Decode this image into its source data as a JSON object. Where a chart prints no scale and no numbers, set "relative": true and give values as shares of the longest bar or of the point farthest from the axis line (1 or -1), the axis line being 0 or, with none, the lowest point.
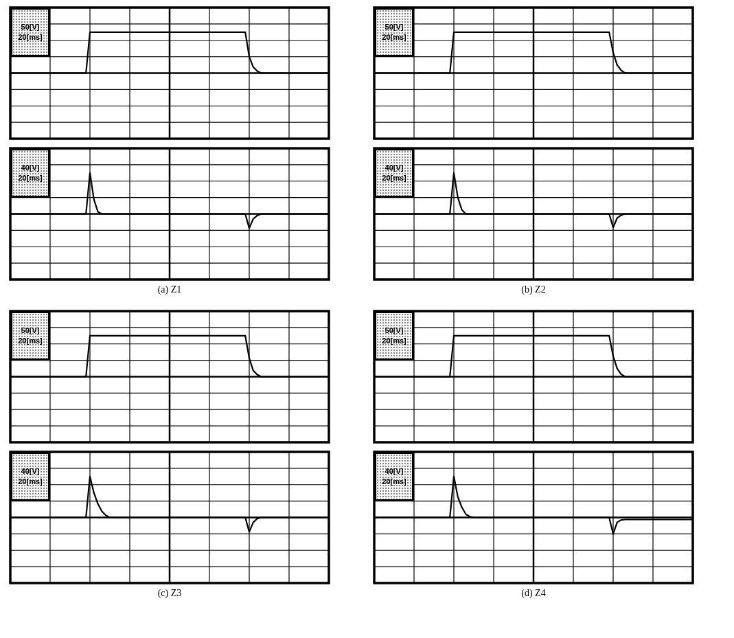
{
  "chart_data": [
    {
      "type": "line",
      "relative": true,
      "grid": true,
      "annotations": [
        "50[V]",
        "20[ms]"
      ],
      "categories": [
        null,
        null,
        null,
        null,
        null,
        null,
        null,
        null,
        null,
        null,
        null,
        null,
        null,
        null,
        null,
        null,
        null,
        null,
        null,
        null,
        null,
        null,
        null,
        null,
        null,
        null,
        null,
        null,
        null,
        null,
        null,
        null,
        null,
        null,
        null,
        null,
        null,
        null,
        null,
        null,
        null,
        null,
        null,
        null,
        null,
        null,
        null,
        null,
        null,
        null,
        null,
        null,
        null,
        null,
        null,
        null,
        null,
        null,
        null,
        null,
        null,
        null,
        null,
        null,
        null,
        null,
        null,
        null,
        null,
        null,
        null,
        null,
        null,
        null,
        null,
        null,
        null,
        null,
        null,
        null,
        null
      ],
      "series": [
        {
          "color": "#000000",
          "values": [
            0,
            0,
            0,
            0,
            0,
            0,
            0,
            0,
            0,
            0,
            0,
            0,
            0,
            0,
            0,
            0,
            0,
            0,
            0,
            0,
            1,
            1,
            1,
            1,
            1,
            1,
            1,
            1,
            1,
            1,
            1,
            1,
            1,
            1,
            1,
            1,
            1,
            1,
            1,
            1,
            1,
            1,
            1,
            1,
            1,
            1,
            1,
            1,
            1,
            1,
            1,
            1,
            1,
            1,
            1,
            1,
            1,
            1,
            1,
            1,
            0.4,
            0.15,
            0.05,
            0,
            0,
            0,
            0,
            0,
            0,
            0,
            0,
            0,
            0,
            0,
            0,
            0,
            0,
            0,
            0,
            0,
            0
          ]
        }
      ]
    },
    {
      "type": "line",
      "relative": true,
      "grid": true,
      "annotations": [
        "40[V]",
        "20[ms]",
        "(a) Z1"
      ],
      "categories": [
        null,
        null,
        null,
        null,
        null,
        null,
        null,
        null,
        null,
        null,
        null,
        null,
        null,
        null,
        null,
        null,
        null,
        null,
        null,
        null,
        null,
        null,
        null,
        null,
        null,
        null,
        null,
        null,
        null,
        null,
        null,
        null,
        null,
        null,
        null,
        null,
        null,
        null,
        null,
        null,
        null,
        null,
        null,
        null,
        null,
        null,
        null,
        null,
        null,
        null,
        null,
        null,
        null,
        null,
        null,
        null,
        null,
        null,
        null,
        null,
        null,
        null,
        null,
        null,
        null,
        null,
        null,
        null,
        null,
        null,
        null,
        null,
        null,
        null,
        null,
        null,
        null,
        null,
        null,
        null,
        null
      ],
      "series": [
        {
          "color": "#000000",
          "values": [
            0,
            0,
            0,
            0,
            0,
            0,
            0,
            0,
            0,
            0,
            0,
            0,
            0,
            0,
            0,
            0,
            0,
            0,
            0,
            0,
            1,
            0.35,
            0.05,
            0,
            0,
            0,
            0,
            0,
            0,
            0,
            0,
            0,
            0,
            0,
            0,
            0,
            0,
            0,
            0,
            0,
            0,
            0,
            0,
            0,
            0,
            0,
            0,
            0,
            0,
            0,
            0,
            0,
            0,
            0,
            0,
            0,
            0,
            0,
            0,
            0,
            -0.35,
            -0.12,
            -0.04,
            0,
            0,
            0,
            0,
            0,
            0,
            0,
            0,
            0,
            0,
            0,
            0,
            0,
            0,
            0,
            0,
            0,
            0
          ]
        }
      ]
    },
    {
      "type": "line",
      "relative": true,
      "grid": true,
      "annotations": [
        "50[V]",
        "20[ms]"
      ],
      "categories": [
        null,
        null,
        null,
        null,
        null,
        null,
        null,
        null,
        null,
        null,
        null,
        null,
        null,
        null,
        null,
        null,
        null,
        null,
        null,
        null,
        null,
        null,
        null,
        null,
        null,
        null,
        null,
        null,
        null,
        null,
        null,
        null,
        null,
        null,
        null,
        null,
        null,
        null,
        null,
        null,
        null,
        null,
        null,
        null,
        null,
        null,
        null,
        null,
        null,
        null,
        null,
        null,
        null,
        null,
        null,
        null,
        null,
        null,
        null,
        null,
        null,
        null,
        null,
        null,
        null,
        null,
        null,
        null,
        null,
        null,
        null,
        null,
        null,
        null,
        null,
        null,
        null,
        null,
        null,
        null,
        null
      ],
      "series": [
        {
          "color": "#000000",
          "values": [
            0,
            0,
            0,
            0,
            0,
            0,
            0,
            0,
            0,
            0,
            0,
            0,
            0,
            0,
            0,
            0,
            0,
            0,
            0,
            0,
            1,
            1,
            1,
            1,
            1,
            1,
            1,
            1,
            1,
            1,
            1,
            1,
            1,
            1,
            1,
            1,
            1,
            1,
            1,
            1,
            1,
            1,
            1,
            1,
            1,
            1,
            1,
            1,
            1,
            1,
            1,
            1,
            1,
            1,
            1,
            1,
            1,
            1,
            1,
            1,
            0.5,
            0.2,
            0.07,
            0,
            0,
            0,
            0,
            0,
            0,
            0,
            0,
            0,
            0,
            0,
            0,
            0,
            0,
            0,
            0,
            0,
            0
          ]
        }
      ]
    },
    {
      "type": "line",
      "relative": true,
      "grid": true,
      "annotations": [
        "40[V]",
        "20[ms]",
        "(b) Z2"
      ],
      "categories": [
        null,
        null,
        null,
        null,
        null,
        null,
        null,
        null,
        null,
        null,
        null,
        null,
        null,
        null,
        null,
        null,
        null,
        null,
        null,
        null,
        null,
        null,
        null,
        null,
        null,
        null,
        null,
        null,
        null,
        null,
        null,
        null,
        null,
        null,
        null,
        null,
        null,
        null,
        null,
        null,
        null,
        null,
        null,
        null,
        null,
        null,
        null,
        null,
        null,
        null,
        null,
        null,
        null,
        null,
        null,
        null,
        null,
        null,
        null,
        null,
        null,
        null,
        null,
        null,
        null,
        null,
        null,
        null,
        null,
        null,
        null,
        null,
        null,
        null,
        null,
        null,
        null,
        null,
        null,
        null,
        null
      ],
      "series": [
        {
          "color": "#000000",
          "values": [
            0,
            0,
            0,
            0,
            0,
            0,
            0,
            0,
            0,
            0,
            0,
            0,
            0,
            0,
            0,
            0,
            0,
            0,
            0,
            0,
            1,
            0.4,
            0.1,
            0,
            0,
            0,
            0,
            0,
            0,
            0,
            0,
            0,
            0,
            0,
            0,
            0,
            0,
            0,
            0,
            0,
            0,
            0,
            0,
            0,
            0,
            0,
            0,
            0,
            0,
            0,
            0,
            0,
            0,
            0,
            0,
            0,
            0,
            0,
            0,
            0,
            -0.33,
            -0.1,
            -0.03,
            0,
            0,
            0,
            0,
            0,
            0,
            0,
            0,
            0,
            0,
            0,
            0,
            0,
            0,
            0,
            0,
            0,
            0
          ]
        }
      ]
    },
    {
      "type": "line",
      "relative": true,
      "grid": true,
      "annotations": [
        "50[V]",
        "20[ms]"
      ],
      "categories": [
        null,
        null,
        null,
        null,
        null,
        null,
        null,
        null,
        null,
        null,
        null,
        null,
        null,
        null,
        null,
        null,
        null,
        null,
        null,
        null,
        null,
        null,
        null,
        null,
        null,
        null,
        null,
        null,
        null,
        null,
        null,
        null,
        null,
        null,
        null,
        null,
        null,
        null,
        null,
        null,
        null,
        null,
        null,
        null,
        null,
        null,
        null,
        null,
        null,
        null,
        null,
        null,
        null,
        null,
        null,
        null,
        null,
        null,
        null,
        null,
        null,
        null,
        null,
        null,
        null,
        null,
        null,
        null,
        null,
        null,
        null,
        null,
        null,
        null,
        null,
        null,
        null,
        null,
        null,
        null,
        null
      ],
      "series": [
        {
          "color": "#000000",
          "values": [
            0,
            0,
            0,
            0,
            0,
            0,
            0,
            0,
            0,
            0,
            0,
            0,
            0,
            0,
            0,
            0,
            0,
            0,
            0,
            0,
            1,
            1,
            1,
            1,
            1,
            1,
            1,
            1,
            1,
            1,
            1,
            1,
            1,
            1,
            1,
            1,
            1,
            1,
            1,
            1,
            1,
            1,
            1,
            1,
            1,
            1,
            1,
            1,
            1,
            1,
            1,
            1,
            1,
            1,
            1,
            1,
            1,
            1,
            1,
            1,
            0.45,
            0.15,
            0.05,
            0,
            0,
            0,
            0,
            0,
            0,
            0,
            0,
            0,
            0,
            0,
            0,
            0,
            0,
            0,
            0,
            0,
            0
          ]
        }
      ]
    },
    {
      "type": "line",
      "relative": true,
      "grid": true,
      "annotations": [
        "40[V]",
        "20[ms]",
        "(c) Z3"
      ],
      "categories": [
        null,
        null,
        null,
        null,
        null,
        null,
        null,
        null,
        null,
        null,
        null,
        null,
        null,
        null,
        null,
        null,
        null,
        null,
        null,
        null,
        null,
        null,
        null,
        null,
        null,
        null,
        null,
        null,
        null,
        null,
        null,
        null,
        null,
        null,
        null,
        null,
        null,
        null,
        null,
        null,
        null,
        null,
        null,
        null,
        null,
        null,
        null,
        null,
        null,
        null,
        null,
        null,
        null,
        null,
        null,
        null,
        null,
        null,
        null,
        null,
        null,
        null,
        null,
        null,
        null,
        null,
        null,
        null,
        null,
        null,
        null,
        null,
        null,
        null,
        null,
        null,
        null,
        null,
        null,
        null,
        null
      ],
      "series": [
        {
          "color": "#000000",
          "values": [
            0,
            0,
            0,
            0,
            0,
            0,
            0,
            0,
            0,
            0,
            0,
            0,
            0,
            0,
            0,
            0,
            0,
            0,
            0,
            0,
            1,
            0.6,
            0.33,
            0.15,
            0.05,
            0,
            0,
            0,
            0,
            0,
            0,
            0,
            0,
            0,
            0,
            0,
            0,
            0,
            0,
            0,
            0,
            0,
            0,
            0,
            0,
            0,
            0,
            0,
            0,
            0,
            0,
            0,
            0,
            0,
            0,
            0,
            0,
            0,
            0,
            0,
            -0.35,
            -0.12,
            -0.03,
            0,
            0,
            0,
            0,
            0,
            0,
            0,
            0,
            0,
            0,
            0,
            0,
            0,
            0,
            0,
            0,
            0,
            0
          ]
        }
      ]
    },
    {
      "type": "line",
      "relative": true,
      "grid": true,
      "annotations": [
        "50[V]",
        "20[ms]"
      ],
      "categories": [
        null,
        null,
        null,
        null,
        null,
        null,
        null,
        null,
        null,
        null,
        null,
        null,
        null,
        null,
        null,
        null,
        null,
        null,
        null,
        null,
        null,
        null,
        null,
        null,
        null,
        null,
        null,
        null,
        null,
        null,
        null,
        null,
        null,
        null,
        null,
        null,
        null,
        null,
        null,
        null,
        null,
        null,
        null,
        null,
        null,
        null,
        null,
        null,
        null,
        null,
        null,
        null,
        null,
        null,
        null,
        null,
        null,
        null,
        null,
        null,
        null,
        null,
        null,
        null,
        null,
        null,
        null,
        null,
        null,
        null,
        null,
        null,
        null,
        null,
        null,
        null,
        null,
        null,
        null,
        null,
        null
      ],
      "series": [
        {
          "color": "#000000",
          "values": [
            0,
            0,
            0,
            0,
            0,
            0,
            0,
            0,
            0,
            0,
            0,
            0,
            0,
            0,
            0,
            0,
            0,
            0,
            0,
            0,
            1,
            1,
            1,
            1,
            1,
            1,
            1,
            1,
            1,
            1,
            1,
            1,
            1,
            1,
            1,
            1,
            1,
            1,
            1,
            1,
            1,
            1,
            1,
            1,
            1,
            1,
            1,
            1,
            1,
            1,
            1,
            1,
            1,
            1,
            1,
            1,
            1,
            1,
            1,
            1,
            0.5,
            0.2,
            0.06,
            0,
            0,
            0,
            0,
            0,
            0,
            0,
            0,
            0,
            0,
            0,
            0,
            0,
            0,
            0,
            0,
            0,
            0
          ]
        }
      ]
    },
    {
      "type": "line",
      "relative": true,
      "grid": true,
      "annotations": [
        "40[V]",
        "20[ms]",
        "(d) Z4"
      ],
      "categories": [
        null,
        null,
        null,
        null,
        null,
        null,
        null,
        null,
        null,
        null,
        null,
        null,
        null,
        null,
        null,
        null,
        null,
        null,
        null,
        null,
        null,
        null,
        null,
        null,
        null,
        null,
        null,
        null,
        null,
        null,
        null,
        null,
        null,
        null,
        null,
        null,
        null,
        null,
        null,
        null,
        null,
        null,
        null,
        null,
        null,
        null,
        null,
        null,
        null,
        null,
        null,
        null,
        null,
        null,
        null,
        null,
        null,
        null,
        null,
        null,
        null,
        null,
        null,
        null,
        null,
        null,
        null,
        null,
        null,
        null,
        null,
        null,
        null,
        null,
        null,
        null,
        null,
        null,
        null,
        null,
        null
      ],
      "series": [
        {
          "color": "#000000",
          "values": [
            0,
            0,
            0,
            0,
            0,
            0,
            0,
            0,
            0,
            0,
            0,
            0,
            0,
            0,
            0,
            0,
            0,
            0,
            0,
            0,
            1,
            0.5,
            0.25,
            0.08,
            0.02,
            0,
            0,
            0,
            0,
            0,
            0,
            0,
            0,
            0,
            0,
            0,
            0,
            0,
            0,
            0,
            0,
            0,
            0,
            0,
            0,
            0,
            0,
            0,
            0,
            0,
            0,
            0,
            0,
            0,
            0,
            0,
            0,
            0,
            0,
            0,
            -0.4,
            -0.12,
            -0.06,
            -0.05,
            -0.05,
            -0.05,
            -0.05,
            -0.05,
            -0.05,
            -0.05,
            -0.05,
            -0.05,
            -0.05,
            -0.05,
            -0.05,
            -0.05,
            -0.05,
            -0.05,
            -0.05,
            -0.05,
            -0.05
          ]
        }
      ]
    }
  ]
}
